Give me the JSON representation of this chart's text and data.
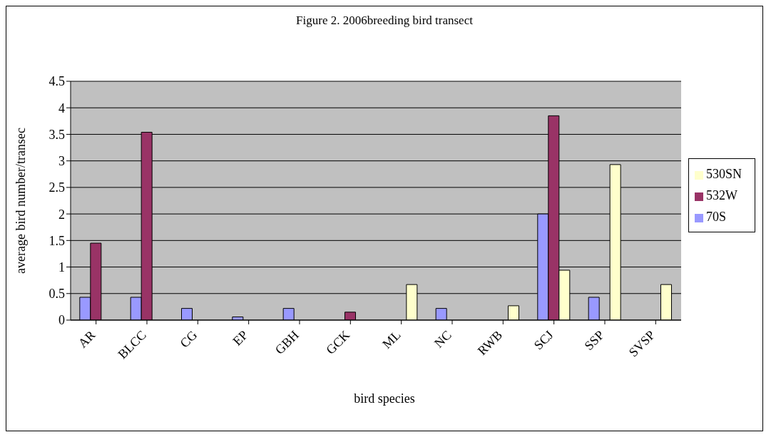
{
  "chart_data": {
    "type": "bar",
    "title": "Figure 2. 2006breeding bird transect",
    "xlabel": "bird species",
    "ylabel": "average bird number/transec",
    "categories": [
      "AR",
      "BLCC",
      "CG",
      "EP",
      "GBH",
      "GCK",
      "ML",
      "NC",
      "RWB",
      "SCJ",
      "SSP",
      "SVSP"
    ],
    "series": [
      {
        "name": "70S",
        "color": "#9999ff",
        "values": [
          0.43,
          0.43,
          0.22,
          0.06,
          0.22,
          0,
          0,
          0.22,
          0,
          2.0,
          0.43,
          0
        ]
      },
      {
        "name": "532W",
        "color": "#993366",
        "values": [
          1.45,
          3.54,
          0,
          0,
          0,
          0.15,
          0,
          0,
          0,
          3.85,
          0,
          0
        ]
      },
      {
        "name": "530SN",
        "color": "#ffffcc",
        "values": [
          0,
          0,
          0,
          0,
          0,
          0,
          0.67,
          0,
          0.27,
          0.94,
          2.93,
          0.67
        ]
      }
    ],
    "ylim": [
      0,
      4.5
    ],
    "yticks": [
      0,
      0.5,
      1,
      1.5,
      2,
      2.5,
      3,
      3.5,
      4,
      4.5
    ],
    "grid": "y",
    "legend": "right"
  }
}
